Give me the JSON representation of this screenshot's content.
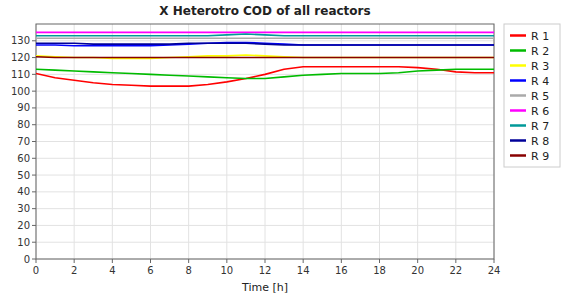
{
  "chart_data": {
    "type": "line",
    "title": "X Heterotro COD of all reactors",
    "x_label": "Time [h]",
    "x": [
      0,
      1,
      2,
      3,
      4,
      5,
      6,
      7,
      8,
      9,
      10,
      11,
      12,
      13,
      14,
      15,
      16,
      17,
      18,
      19,
      20,
      21,
      22,
      23,
      24
    ],
    "xlim": [
      0,
      24
    ],
    "ylim": [
      0,
      140
    ],
    "xticks": [
      0,
      2,
      4,
      6,
      8,
      10,
      12,
      14,
      16,
      18,
      20,
      22,
      24
    ],
    "yticks": [
      0,
      10,
      20,
      30,
      40,
      50,
      60,
      70,
      80,
      90,
      100,
      110,
      120,
      130
    ],
    "grid": true,
    "legend": "right",
    "series": [
      {
        "name": "R 1",
        "color": "#ff0000",
        "values": [
          110.5,
          108.0,
          106.5,
          105.0,
          104.0,
          103.5,
          103.0,
          103.0,
          103.0,
          104.0,
          105.5,
          107.5,
          110.0,
          113.0,
          114.5,
          114.5,
          114.5,
          114.5,
          114.5,
          114.5,
          114.0,
          113.0,
          111.5,
          111.0,
          111.0
        ]
      },
      {
        "name": "R 2",
        "color": "#00bb00",
        "values": [
          113.0,
          112.5,
          112.0,
          111.5,
          111.0,
          110.5,
          110.0,
          109.5,
          109.0,
          108.5,
          108.0,
          107.5,
          107.5,
          108.5,
          109.5,
          110.0,
          110.5,
          110.5,
          110.5,
          111.0,
          112.0,
          112.5,
          113.0,
          113.0,
          113.0
        ]
      },
      {
        "name": "R 3",
        "color": "#ffff00",
        "values": [
          121.0,
          120.5,
          120.0,
          120.0,
          119.5,
          119.5,
          119.5,
          120.0,
          120.5,
          121.0,
          121.0,
          121.5,
          121.0,
          120.5,
          120.0,
          120.0,
          120.0,
          120.0,
          120.0,
          120.0,
          120.0,
          120.0,
          120.0,
          120.0,
          120.0
        ]
      },
      {
        "name": "R 4",
        "color": "#0000ff",
        "values": [
          127.5,
          127.5,
          127.0,
          127.0,
          127.0,
          127.0,
          127.0,
          127.5,
          128.0,
          128.5,
          129.0,
          129.0,
          128.5,
          128.0,
          127.5,
          127.5,
          127.5,
          127.5,
          127.5,
          127.5,
          127.5,
          127.5,
          127.5,
          127.5,
          127.5
        ]
      },
      {
        "name": "R 5",
        "color": "#aaaaaa",
        "values": [
          131.5,
          131.5,
          131.5,
          131.5,
          131.5,
          131.5,
          131.5,
          131.5,
          131.5,
          131.5,
          131.5,
          131.5,
          131.5,
          131.5,
          131.5,
          131.5,
          131.5,
          131.5,
          131.5,
          131.5,
          131.5,
          131.5,
          131.5,
          131.5,
          131.5
        ]
      },
      {
        "name": "R 6",
        "color": "#ff00ff",
        "values": [
          135.0,
          135.0,
          135.0,
          135.0,
          135.0,
          135.0,
          135.0,
          135.0,
          135.0,
          135.0,
          135.0,
          135.0,
          135.0,
          135.0,
          135.0,
          135.0,
          135.0,
          135.0,
          135.0,
          135.0,
          135.0,
          135.0,
          135.0,
          135.0,
          135.0
        ]
      },
      {
        "name": "R 7",
        "color": "#009999",
        "values": [
          133.0,
          133.0,
          133.0,
          133.0,
          133.0,
          133.0,
          133.0,
          133.0,
          133.0,
          133.0,
          133.5,
          134.0,
          133.5,
          133.0,
          133.0,
          133.0,
          133.0,
          133.0,
          133.0,
          133.0,
          133.0,
          133.0,
          133.0,
          133.0,
          133.0
        ]
      },
      {
        "name": "R 8",
        "color": "#000099",
        "values": [
          128.5,
          128.5,
          128.5,
          128.0,
          128.0,
          128.0,
          128.0,
          128.0,
          128.5,
          128.5,
          128.5,
          128.5,
          128.0,
          127.5,
          127.5,
          127.5,
          127.5,
          127.5,
          127.5,
          127.5,
          127.5,
          127.5,
          127.5,
          127.5,
          127.5
        ]
      },
      {
        "name": "R 9",
        "color": "#880000",
        "values": [
          120.5,
          120.0,
          120.0,
          120.0,
          120.0,
          120.0,
          120.0,
          120.0,
          120.0,
          120.0,
          120.0,
          120.0,
          120.0,
          120.0,
          120.0,
          120.0,
          120.0,
          120.0,
          120.0,
          120.0,
          120.0,
          120.0,
          120.0,
          120.0,
          120.0
        ]
      }
    ]
  }
}
